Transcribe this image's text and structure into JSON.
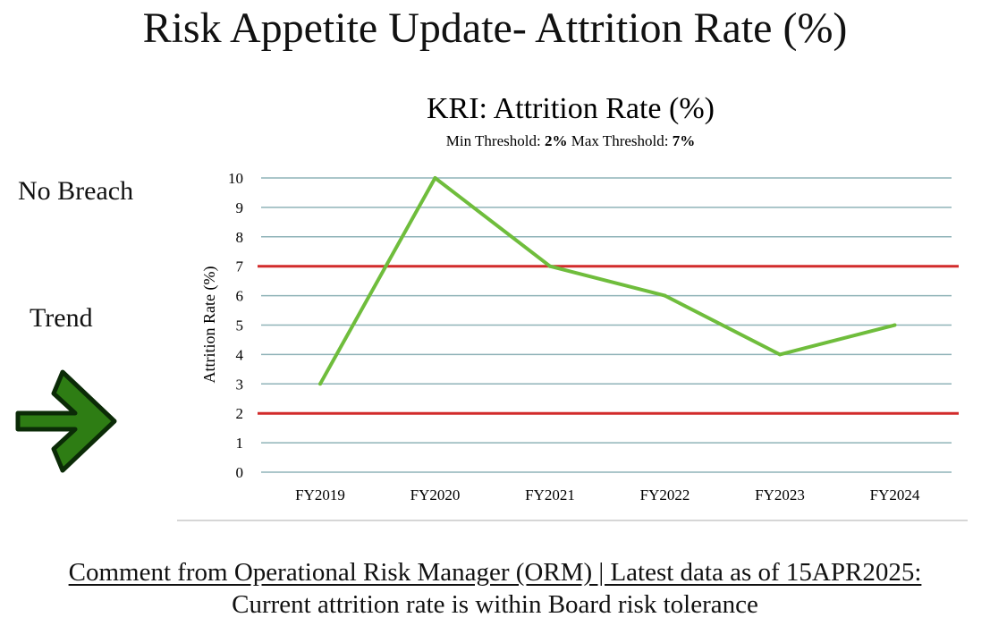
{
  "page": {
    "title": "Risk Appetite Update- Attrition Rate (%)",
    "status_label": "No Breach",
    "trend_label": "Trend",
    "trend_icon": "right-arrow-icon",
    "colors": {
      "trend_arrow": "#2e7d14",
      "line": "#6fbd3c",
      "threshold": "#d22b2b",
      "grid": "#8fb3b8"
    }
  },
  "chart_data": {
    "type": "line",
    "title": "KRI: Attrition Rate (%)",
    "subtitle": {
      "min_label": "Min Threshold: ",
      "min_value": "2%",
      "max_label": " Max Threshold: ",
      "max_value": "7%"
    },
    "ylabel": "Attrition Rate (%)",
    "categories": [
      "FY2019",
      "FY2020",
      "FY2021",
      "FY2022",
      "FY2023",
      "FY2024"
    ],
    "series": [
      {
        "values": [
          3,
          10,
          7,
          6,
          4,
          5
        ]
      }
    ],
    "thresholds": {
      "min": 2,
      "max": 7
    },
    "ylim": [
      0,
      10
    ],
    "yticks": [
      0,
      1,
      2,
      3,
      4,
      5,
      6,
      7,
      8,
      9,
      10
    ],
    "grid": true
  },
  "footer": {
    "line1": "Comment from Operational Risk Manager (ORM)  | Latest data as of 15APR2025:",
    "line2": "Current attrition rate is within Board risk tolerance"
  }
}
